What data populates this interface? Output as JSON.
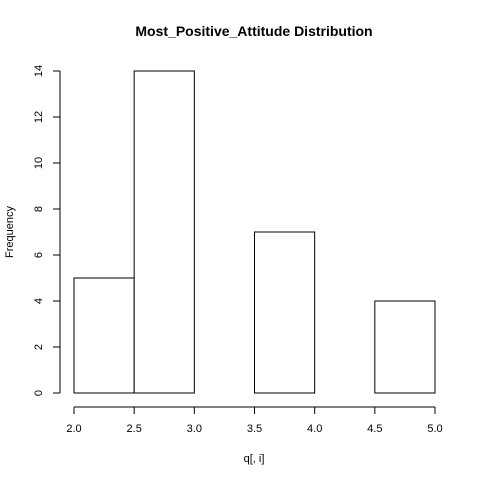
{
  "chart_data": {
    "type": "bar",
    "title": "Most_Positive_Attitude Distribution",
    "xlabel": "q[, i]",
    "ylabel": "Frequency",
    "bins": [
      {
        "start": 2.0,
        "end": 2.5,
        "value": 5
      },
      {
        "start": 2.5,
        "end": 3.0,
        "value": 14
      },
      {
        "start": 3.0,
        "end": 3.5,
        "value": 0
      },
      {
        "start": 3.5,
        "end": 4.0,
        "value": 7
      },
      {
        "start": 4.0,
        "end": 4.5,
        "value": 0
      },
      {
        "start": 4.5,
        "end": 5.0,
        "value": 4
      }
    ],
    "xlim": [
      2.0,
      5.0
    ],
    "ylim": [
      0,
      14
    ],
    "xticks": [
      {
        "value": 2.0,
        "label": "2.0"
      },
      {
        "value": 2.5,
        "label": "2.5"
      },
      {
        "value": 3.0,
        "label": "3.0"
      },
      {
        "value": 3.5,
        "label": "3.5"
      },
      {
        "value": 4.0,
        "label": "4.0"
      },
      {
        "value": 4.5,
        "label": "4.5"
      },
      {
        "value": 5.0,
        "label": "5.0"
      }
    ],
    "yticks": [
      {
        "value": 0,
        "label": "0"
      },
      {
        "value": 2,
        "label": "2"
      },
      {
        "value": 4,
        "label": "4"
      },
      {
        "value": 6,
        "label": "6"
      },
      {
        "value": 8,
        "label": "8"
      },
      {
        "value": 10,
        "label": "10"
      },
      {
        "value": 12,
        "label": "12"
      },
      {
        "value": 14,
        "label": "14"
      }
    ],
    "grid": false,
    "bar_fill": "#ffffff",
    "bar_stroke": "#000000"
  }
}
